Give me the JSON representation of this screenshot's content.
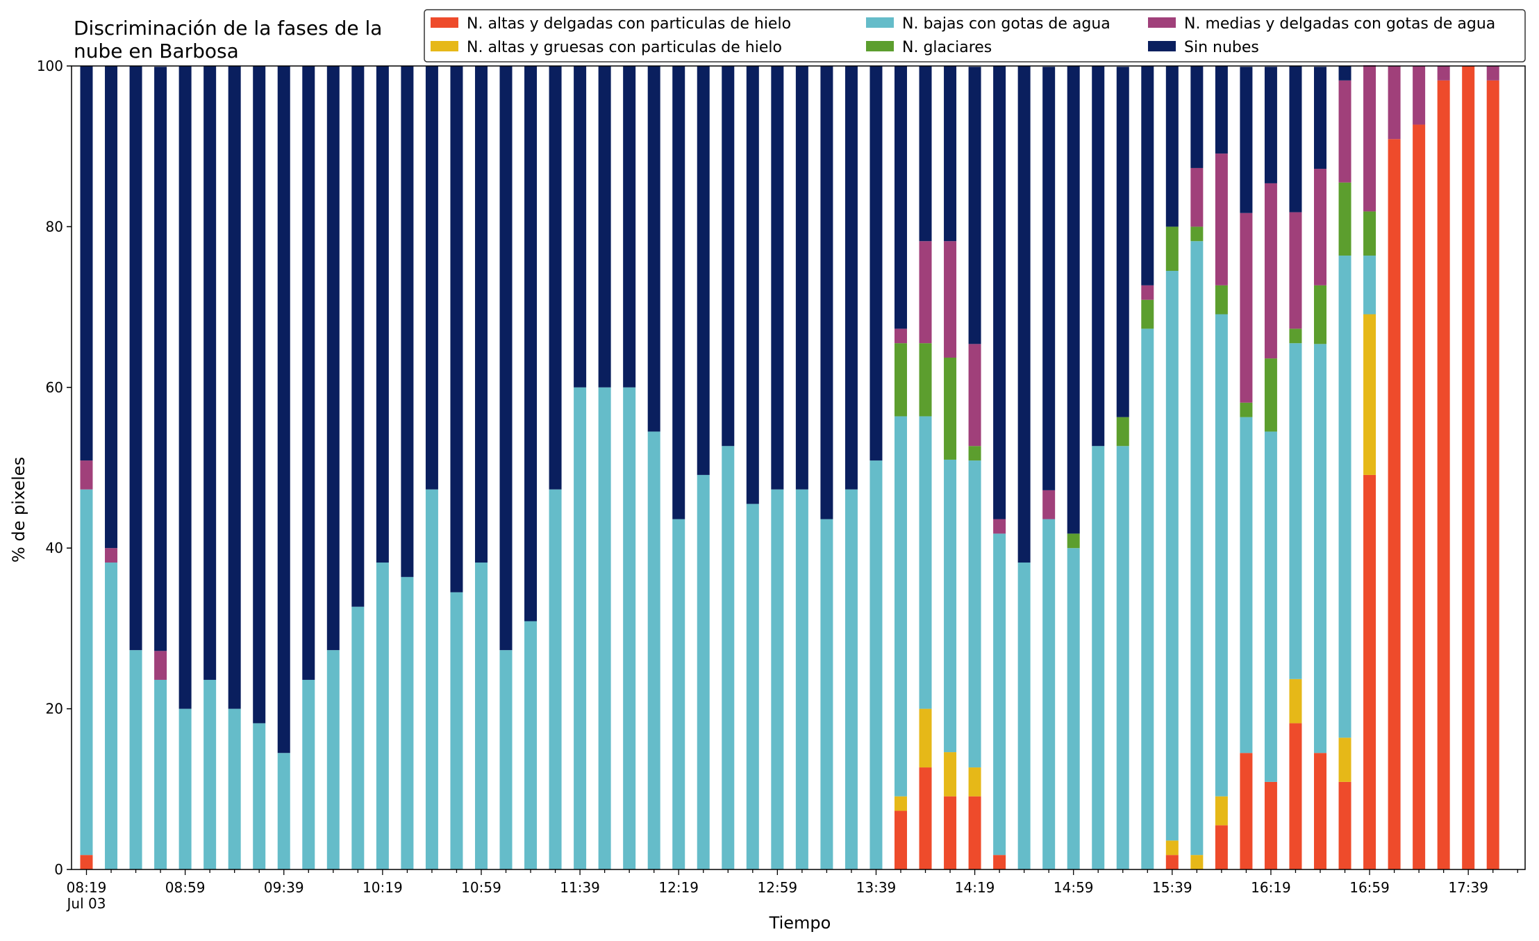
{
  "chart_data": {
    "type": "bar",
    "stacked": true,
    "title_lines": [
      "Discriminación de la fases de la",
      "nube en Barbosa"
    ],
    "xlabel": "Tiempo",
    "ylabel": "% de pixeles",
    "ylim": [
      0,
      100
    ],
    "yticks": [
      0,
      20,
      40,
      60,
      80,
      100
    ],
    "x_tick_labels": [
      "08:19",
      "08:59",
      "09:39",
      "10:19",
      "10:59",
      "11:39",
      "12:19",
      "12:59",
      "13:39",
      "14:19",
      "14:59",
      "15:39",
      "16:19",
      "16:59",
      "17:39"
    ],
    "x_sub_label": "Jul 03",
    "grid": false,
    "legend_position": "top-right",
    "series": [
      {
        "name": "N. altas y delgadas con particulas de hielo",
        "color": "#ee4b2b",
        "values": [
          1.8,
          0,
          0,
          0,
          0,
          0,
          0,
          0,
          0,
          0,
          0,
          0,
          0,
          0,
          0,
          0,
          0,
          0,
          0,
          0,
          0,
          0,
          0,
          0,
          0,
          0,
          0,
          0,
          0,
          0,
          0,
          0,
          0,
          7.3,
          12.7,
          9.1,
          9.1,
          1.8,
          0,
          0,
          0,
          0,
          0,
          0,
          1.8,
          0,
          5.5,
          14.5,
          10.9,
          18.2,
          14.5,
          10.9,
          49.1,
          90.9,
          92.7,
          98.2,
          100,
          98.2
        ]
      },
      {
        "name": "N. altas y gruesas con particulas de hielo",
        "color": "#e6b818",
        "values": [
          0,
          0,
          0,
          0,
          0,
          0,
          0,
          0,
          0,
          0,
          0,
          0,
          0,
          0,
          0,
          0,
          0,
          0,
          0,
          0,
          0,
          0,
          0,
          0,
          0,
          0,
          0,
          0,
          0,
          0,
          0,
          0,
          0,
          1.8,
          7.3,
          5.5,
          3.6,
          0,
          0,
          0,
          0,
          0,
          0,
          0,
          1.8,
          1.8,
          3.6,
          0,
          0,
          5.5,
          0,
          5.5,
          20.0,
          0,
          0,
          0,
          0,
          0
        ]
      },
      {
        "name": "N. bajas con gotas de agua",
        "color": "#65bcc9",
        "values": [
          45.5,
          38.2,
          27.3,
          23.6,
          20.0,
          23.6,
          20.0,
          18.2,
          14.5,
          23.6,
          27.3,
          32.7,
          38.2,
          36.4,
          47.3,
          34.5,
          38.2,
          27.3,
          30.9,
          47.3,
          60.0,
          60.0,
          60.0,
          54.5,
          43.6,
          49.1,
          52.7,
          45.5,
          47.3,
          47.3,
          43.6,
          47.3,
          50.9,
          47.3,
          36.4,
          36.4,
          38.2,
          40.0,
          38.2,
          43.6,
          40.0,
          52.7,
          52.7,
          67.3,
          70.9,
          76.4,
          60.0,
          41.8,
          43.6,
          41.8,
          50.9,
          60.0,
          7.3,
          0,
          0,
          0,
          0,
          0
        ]
      },
      {
        "name": "N. glaciares",
        "color": "#5c9e2e",
        "values": [
          0,
          0,
          0,
          0,
          0,
          0,
          0,
          0,
          0,
          0,
          0,
          0,
          0,
          0,
          0,
          0,
          0,
          0,
          0,
          0,
          0,
          0,
          0,
          0,
          0,
          0,
          0,
          0,
          0,
          0,
          0,
          0,
          0,
          9.1,
          9.1,
          12.7,
          1.8,
          0,
          0,
          0,
          1.8,
          0,
          3.6,
          3.6,
          5.5,
          1.8,
          3.6,
          1.8,
          9.1,
          1.8,
          7.3,
          9.1,
          5.5,
          0,
          0,
          0,
          0,
          0
        ]
      },
      {
        "name": "N. medias y delgadas con gotas de agua",
        "color": "#a0407a",
        "values": [
          3.6,
          1.8,
          0,
          3.6,
          0,
          0,
          0,
          0,
          0,
          0,
          0,
          0,
          0,
          0,
          0,
          0,
          0,
          0,
          0,
          0,
          0,
          0,
          0,
          0,
          0,
          0,
          0,
          0,
          0,
          0,
          0,
          0,
          0,
          1.8,
          12.7,
          14.5,
          12.7,
          1.8,
          0,
          3.6,
          0,
          0,
          0,
          1.8,
          0,
          7.3,
          16.4,
          23.6,
          21.8,
          14.5,
          14.5,
          12.7,
          18.2,
          9.1,
          7.3,
          1.8,
          0,
          1.8
        ]
      },
      {
        "name": "Sin nubes",
        "color": "#0a1f5e",
        "values": [
          49.1,
          60.0,
          72.7,
          72.7,
          80.0,
          76.4,
          80.0,
          81.8,
          85.5,
          76.4,
          72.7,
          67.3,
          61.8,
          63.6,
          52.7,
          65.5,
          61.8,
          72.7,
          69.1,
          52.7,
          40.0,
          40.0,
          40.0,
          45.5,
          56.4,
          50.9,
          47.3,
          54.5,
          52.7,
          52.7,
          56.4,
          52.7,
          49.1,
          32.7,
          21.8,
          21.8,
          34.5,
          56.4,
          61.8,
          52.7,
          58.2,
          47.3,
          43.6,
          27.3,
          20.0,
          12.7,
          10.9,
          18.2,
          14.5,
          18.2,
          12.7,
          1.8,
          0,
          0,
          0,
          0,
          0,
          0
        ]
      }
    ]
  }
}
